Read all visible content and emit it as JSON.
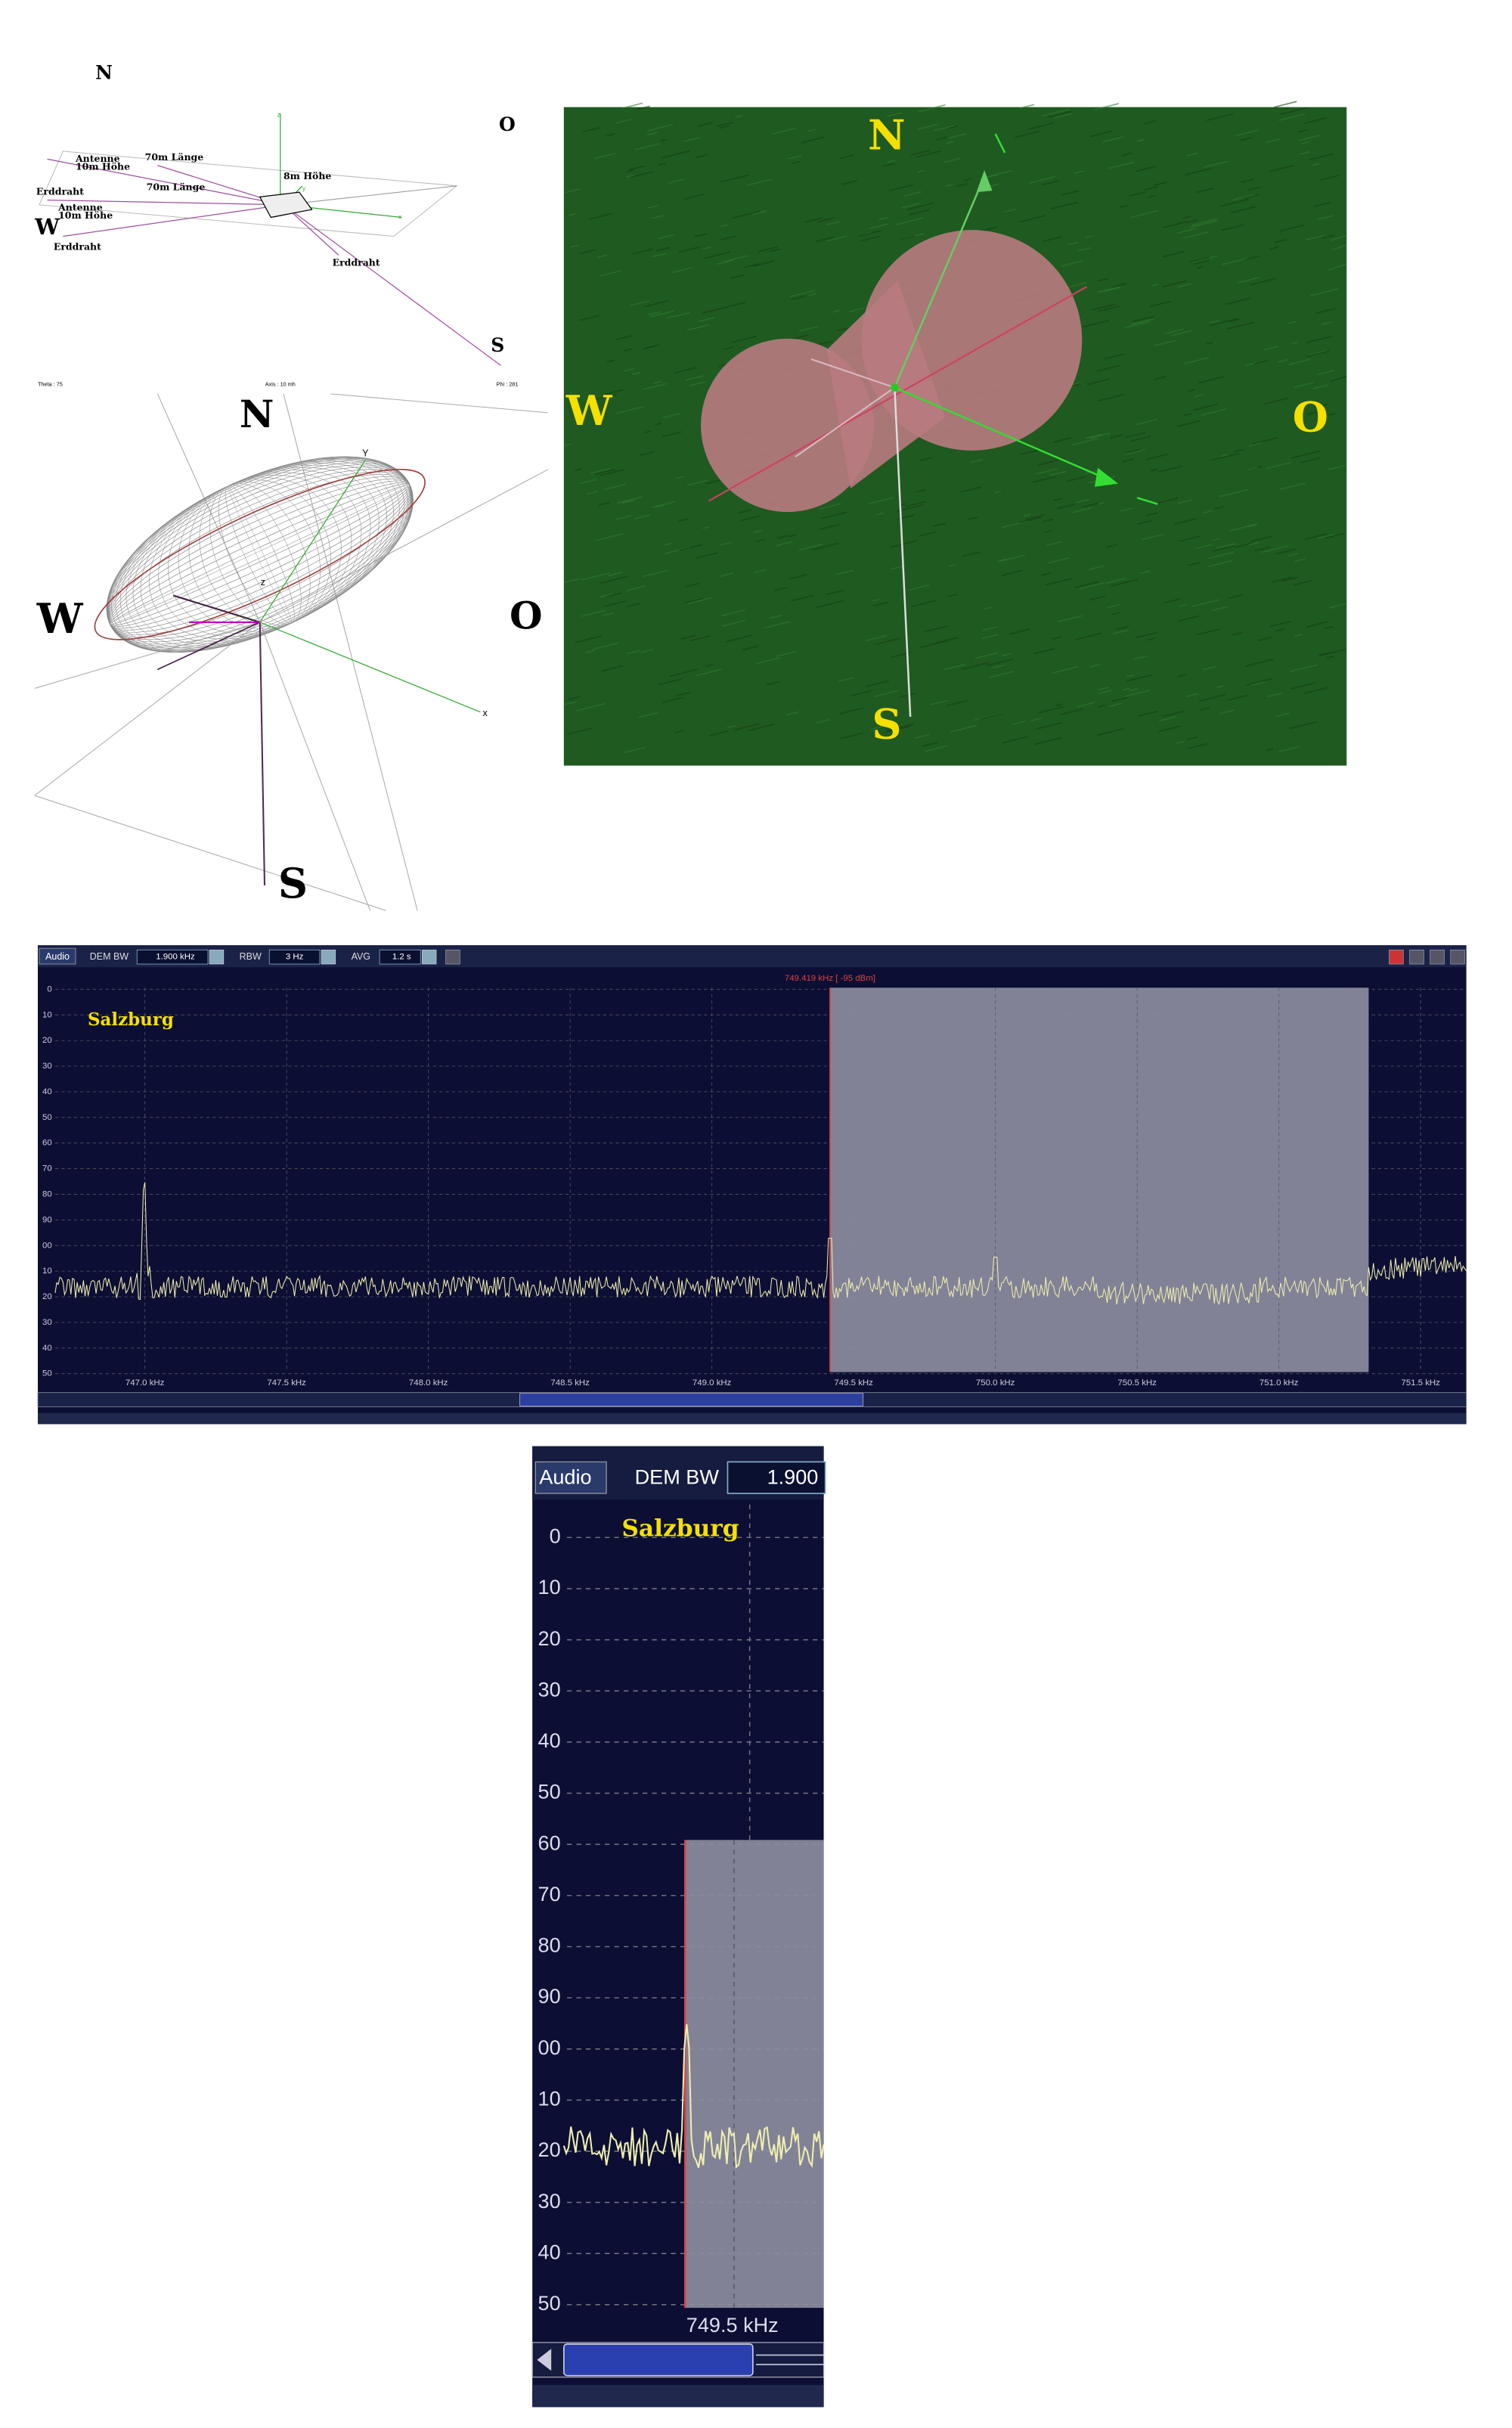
{
  "antenna_diagram": {
    "compass": {
      "n": "N",
      "o": "O",
      "w": "W",
      "s": "S"
    },
    "axes": [
      "z",
      "y",
      "x"
    ],
    "labels": [
      "Antenne",
      "10m Höhe",
      "70m Länge",
      "8m Höhe",
      "Erddraht",
      "70m Länge",
      "Antenne",
      "10m Höhe",
      "Erddraht",
      "Erddraht"
    ],
    "footer": [
      "Theta : 75",
      "Axis : 10 mh",
      "Phi : 281"
    ]
  },
  "radiation_pattern_3d": {
    "compass": {
      "n": "N",
      "o": "O",
      "w": "W",
      "s": "S"
    },
    "axes": [
      "Y",
      "x",
      "z"
    ]
  },
  "radiation_pattern_map": {
    "compass": {
      "n": "N",
      "o": "O",
      "w": "W",
      "s": "S"
    }
  },
  "spectrum": {
    "toolbar": {
      "audio": "Audio",
      "dem_bw": "DEM BW",
      "dem_bw_value": "1.900 kHz",
      "rbw": "RBW",
      "rbw_value": "3 Hz",
      "avg": "AVG",
      "avg_value": "1.2 s"
    },
    "marker": "749.419 kHz [  -95 dBm]",
    "station": "Salzburg",
    "y_labels": [
      "0",
      "10",
      "20",
      "30",
      "40",
      "50",
      "60",
      "70",
      "80",
      "90",
      "00",
      "10",
      "20",
      "30",
      "40",
      "50"
    ],
    "x_labels": [
      "747.0 kHz",
      "747.5 kHz",
      "748.0 kHz",
      "748.5 kHz",
      "749.0 kHz",
      "749.5 kHz",
      "750.0 kHz",
      "750.5 kHz",
      "751.0 kHz",
      "751.5 kHz"
    ]
  },
  "spectrum_zoom": {
    "toolbar": {
      "audio": "Audio",
      "dem_bw": "DEM BW",
      "dem_bw_value": "1.900"
    },
    "station": "Salzburg",
    "y_labels": [
      "0",
      "10",
      "20",
      "30",
      "40",
      "50",
      "60",
      "70",
      "80",
      "90",
      "00",
      "10",
      "20",
      "30",
      "40",
      "50"
    ],
    "x_label": "749.5 kHz"
  }
}
